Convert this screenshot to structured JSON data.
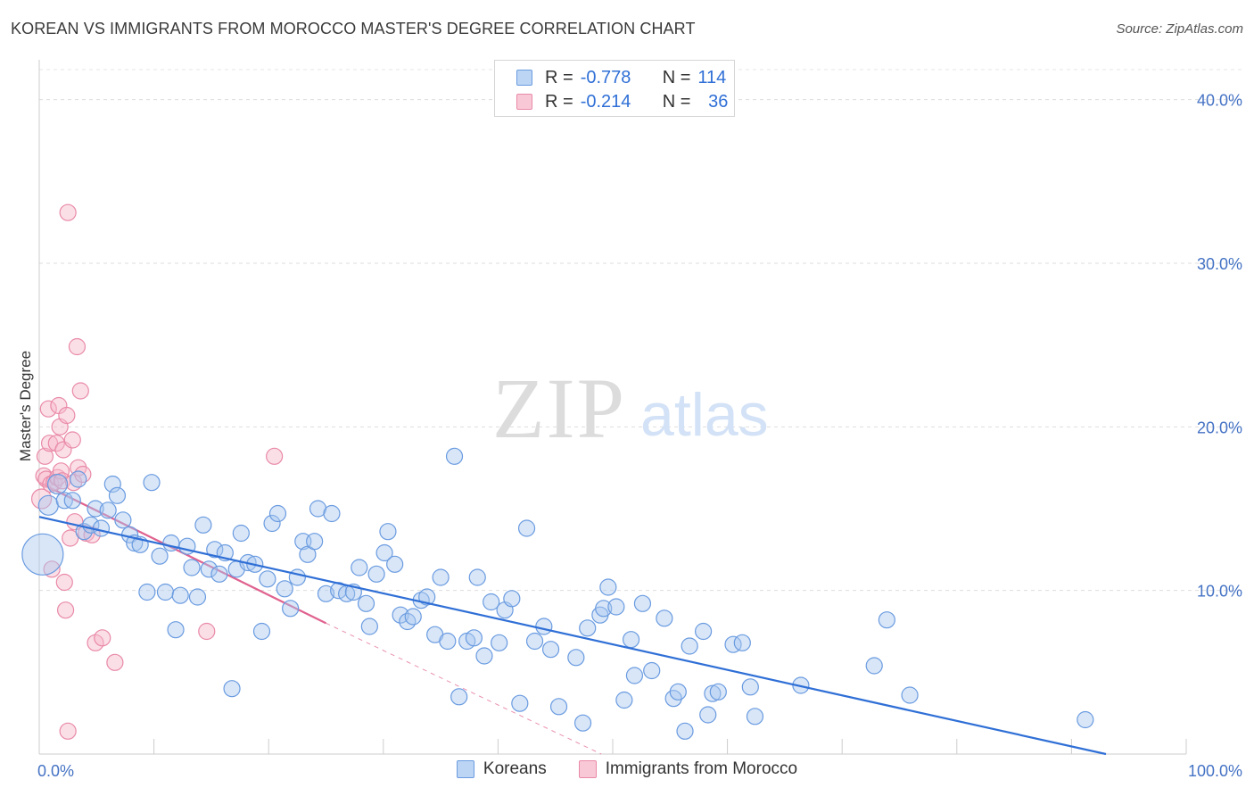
{
  "title": "KOREAN VS IMMIGRANTS FROM MOROCCO MASTER'S DEGREE CORRELATION CHART",
  "source": "Source: ZipAtlas.com",
  "watermark": {
    "zip": "ZIP",
    "atlas": "atlas"
  },
  "colors": {
    "koreans_fill": "#a9c8f0",
    "koreans_stroke": "#6a9be0",
    "koreans_line": "#2f6fd6",
    "morocco_fill": "#f6b7c9",
    "morocco_stroke": "#e98aa8",
    "morocco_line": "#e0628f",
    "axis_label": "#4472c4"
  },
  "legend": {
    "rows": [
      {
        "r_label": "R =",
        "r_value": "-0.778",
        "n_label": "N =",
        "n_value": "114"
      },
      {
        "r_label": "R =",
        "r_value": "-0.214",
        "n_label": "N =",
        "n_value": "36"
      }
    ]
  },
  "bottom_legend": [
    "Koreans",
    "Immigrants from Morocco"
  ],
  "chart_data": {
    "type": "scatter",
    "title": "KOREAN VS IMMIGRANTS FROM MOROCCO MASTER'S DEGREE CORRELATION CHART",
    "xlabel": "",
    "ylabel": "Master's Degree",
    "xlim": [
      0,
      100
    ],
    "ylim": [
      0,
      42
    ],
    "x_tick_labels": [
      "0.0%",
      "100.0%"
    ],
    "y_ticks": [
      10,
      20,
      30,
      40
    ],
    "y_tick_labels": [
      "10.0%",
      "20.0%",
      "30.0%",
      "40.0%"
    ],
    "grid": "horizontal dashed",
    "legend_position": "top-center",
    "series": [
      {
        "name": "Koreans",
        "r": -0.778,
        "n": 114,
        "trend": {
          "x0": 0,
          "y0": 14.5,
          "x1": 93,
          "y1": 0
        },
        "points": [
          [
            0.3,
            12.2,
            22
          ],
          [
            0.8,
            15.2,
            10
          ],
          [
            1.6,
            16.5,
            10
          ],
          [
            2.2,
            15.5,
            8
          ],
          [
            2.9,
            15.5,
            8
          ],
          [
            3.4,
            16.8,
            8
          ],
          [
            3.9,
            13.6,
            8
          ],
          [
            4.5,
            14.0,
            8
          ],
          [
            4.9,
            15.0,
            8
          ],
          [
            5.4,
            13.8,
            8
          ],
          [
            6.0,
            14.9,
            8
          ],
          [
            6.4,
            16.5,
            8
          ],
          [
            6.8,
            15.8,
            8
          ],
          [
            7.3,
            14.3,
            8
          ],
          [
            7.9,
            13.4,
            8
          ],
          [
            8.3,
            12.9,
            8
          ],
          [
            8.8,
            12.8,
            8
          ],
          [
            9.4,
            9.9,
            8
          ],
          [
            9.8,
            16.6,
            8
          ],
          [
            10.5,
            12.1,
            8
          ],
          [
            11.0,
            9.9,
            8
          ],
          [
            11.5,
            12.9,
            8
          ],
          [
            11.9,
            7.6,
            8
          ],
          [
            12.3,
            9.7,
            8
          ],
          [
            12.9,
            12.7,
            8
          ],
          [
            13.3,
            11.4,
            8
          ],
          [
            13.8,
            9.6,
            8
          ],
          [
            14.3,
            14.0,
            8
          ],
          [
            14.8,
            11.3,
            8
          ],
          [
            15.3,
            12.5,
            8
          ],
          [
            15.7,
            11.0,
            8
          ],
          [
            16.2,
            12.3,
            8
          ],
          [
            16.8,
            4.0,
            8
          ],
          [
            17.2,
            11.3,
            8
          ],
          [
            17.6,
            13.5,
            8
          ],
          [
            18.2,
            11.7,
            8
          ],
          [
            18.8,
            11.6,
            8
          ],
          [
            19.4,
            7.5,
            8
          ],
          [
            19.9,
            10.7,
            8
          ],
          [
            20.3,
            14.1,
            8
          ],
          [
            20.8,
            14.7,
            8
          ],
          [
            21.4,
            10.1,
            8
          ],
          [
            21.9,
            8.9,
            8
          ],
          [
            22.5,
            10.8,
            8
          ],
          [
            23.0,
            13.0,
            8
          ],
          [
            23.4,
            12.2,
            8
          ],
          [
            24.0,
            13.0,
            8
          ],
          [
            24.3,
            15.0,
            8
          ],
          [
            25.0,
            9.8,
            8
          ],
          [
            25.5,
            14.7,
            8
          ],
          [
            26.1,
            10.0,
            8
          ],
          [
            26.8,
            9.8,
            8
          ],
          [
            27.4,
            9.9,
            8
          ],
          [
            27.9,
            11.4,
            8
          ],
          [
            28.5,
            9.2,
            8
          ],
          [
            28.8,
            7.8,
            8
          ],
          [
            29.4,
            11.0,
            8
          ],
          [
            30.1,
            12.3,
            8
          ],
          [
            30.4,
            13.6,
            8
          ],
          [
            31.0,
            11.6,
            8
          ],
          [
            31.5,
            8.5,
            8
          ],
          [
            32.1,
            8.1,
            8
          ],
          [
            32.6,
            8.4,
            8
          ],
          [
            33.3,
            9.4,
            8
          ],
          [
            33.8,
            9.6,
            8
          ],
          [
            34.5,
            7.3,
            8
          ],
          [
            35.0,
            10.8,
            8
          ],
          [
            35.6,
            6.9,
            8
          ],
          [
            36.2,
            18.2,
            8
          ],
          [
            36.6,
            3.5,
            8
          ],
          [
            37.3,
            6.9,
            8
          ],
          [
            37.9,
            7.1,
            8
          ],
          [
            38.2,
            10.8,
            8
          ],
          [
            38.8,
            6.0,
            8
          ],
          [
            39.4,
            9.3,
            8
          ],
          [
            40.1,
            6.8,
            8
          ],
          [
            40.6,
            8.8,
            8
          ],
          [
            41.2,
            9.5,
            8
          ],
          [
            41.9,
            3.1,
            8
          ],
          [
            42.5,
            13.8,
            8
          ],
          [
            43.2,
            6.9,
            8
          ],
          [
            44.0,
            7.8,
            8
          ],
          [
            44.6,
            6.4,
            8
          ],
          [
            45.3,
            2.9,
            8
          ],
          [
            46.8,
            5.9,
            8
          ],
          [
            47.4,
            1.9,
            8
          ],
          [
            47.8,
            7.7,
            8
          ],
          [
            48.9,
            8.5,
            8
          ],
          [
            49.2,
            8.9,
            8
          ],
          [
            49.6,
            10.2,
            8
          ],
          [
            50.3,
            9.0,
            8
          ],
          [
            51.0,
            3.3,
            8
          ],
          [
            51.6,
            7.0,
            8
          ],
          [
            51.9,
            4.8,
            8
          ],
          [
            52.6,
            9.2,
            8
          ],
          [
            53.4,
            5.1,
            8
          ],
          [
            54.5,
            8.3,
            8
          ],
          [
            55.3,
            3.4,
            8
          ],
          [
            55.7,
            3.8,
            8
          ],
          [
            56.3,
            1.4,
            8
          ],
          [
            56.7,
            6.6,
            8
          ],
          [
            57.9,
            7.5,
            8
          ],
          [
            58.3,
            2.4,
            8
          ],
          [
            58.7,
            3.7,
            8
          ],
          [
            59.2,
            3.8,
            8
          ],
          [
            60.5,
            6.7,
            8
          ],
          [
            61.3,
            6.8,
            8
          ],
          [
            62.0,
            4.1,
            8
          ],
          [
            62.4,
            2.3,
            8
          ],
          [
            66.4,
            4.2,
            8
          ],
          [
            72.8,
            5.4,
            8
          ],
          [
            73.9,
            8.2,
            8
          ],
          [
            75.9,
            3.6,
            8
          ],
          [
            91.2,
            2.1,
            8
          ]
        ]
      },
      {
        "name": "Immigrants from Morocco",
        "r": -0.214,
        "n": 36,
        "trend": {
          "x0": 0,
          "y0": 16.6,
          "x1": 25,
          "y1": 8.0
        },
        "trend_extension": {
          "x0": 25,
          "y0": 8.0,
          "x1": 49,
          "y1": 0
        },
        "points": [
          [
            0.2,
            15.6,
            10
          ],
          [
            0.4,
            17.0,
            8
          ],
          [
            0.5,
            18.2,
            8
          ],
          [
            0.6,
            16.8,
            8
          ],
          [
            0.8,
            21.1,
            8
          ],
          [
            0.9,
            19.0,
            8
          ],
          [
            1.0,
            16.5,
            8
          ],
          [
            1.1,
            11.3,
            8
          ],
          [
            1.3,
            16.6,
            8
          ],
          [
            1.5,
            19.0,
            8
          ],
          [
            1.6,
            16.9,
            8
          ],
          [
            1.7,
            21.3,
            8
          ],
          [
            1.8,
            20.0,
            8
          ],
          [
            1.9,
            17.3,
            8
          ],
          [
            2.0,
            16.7,
            8
          ],
          [
            2.1,
            18.6,
            8
          ],
          [
            2.2,
            10.5,
            8
          ],
          [
            2.3,
            8.8,
            8
          ],
          [
            2.4,
            20.7,
            8
          ],
          [
            2.5,
            33.1,
            8
          ],
          [
            2.5,
            1.4,
            8
          ],
          [
            2.7,
            13.2,
            8
          ],
          [
            2.9,
            19.2,
            8
          ],
          [
            3.0,
            16.6,
            8
          ],
          [
            3.1,
            14.2,
            8
          ],
          [
            3.3,
            24.9,
            8
          ],
          [
            3.4,
            17.5,
            8
          ],
          [
            3.6,
            22.2,
            8
          ],
          [
            3.8,
            17.1,
            8
          ],
          [
            4.1,
            13.5,
            8
          ],
          [
            4.6,
            13.4,
            8
          ],
          [
            4.9,
            6.8,
            8
          ],
          [
            5.5,
            7.1,
            8
          ],
          [
            6.6,
            5.6,
            8
          ],
          [
            14.6,
            7.5,
            8
          ],
          [
            20.5,
            18.2,
            8
          ]
        ]
      }
    ]
  }
}
